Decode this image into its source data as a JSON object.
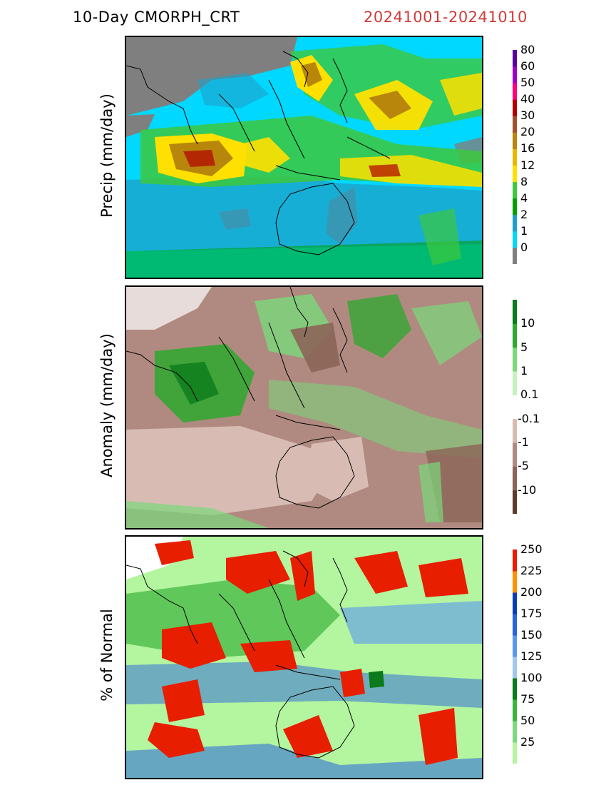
{
  "header": {
    "title": "10-Day CMORPH_CRT",
    "date_range": "20241001-20241010",
    "date_color": "#d23a3a"
  },
  "panels": [
    {
      "id": "precip",
      "ylabel": "Precip (mm/day)",
      "colorbar": {
        "colors": [
          "#7f7f7f",
          "#00d8ff",
          "#1fa0c8",
          "#00a000",
          "#3cc83c",
          "#ffe000",
          "#e6b800",
          "#b8860b",
          "#a0522d",
          "#b00000",
          "#ff0080",
          "#a000c8",
          "#5a00a0"
        ],
        "labels": [
          "0",
          "1",
          "2",
          "4",
          "8",
          "12",
          "16",
          "20",
          "30",
          "40",
          "50",
          "60",
          "80"
        ]
      }
    },
    {
      "id": "anomaly",
      "ylabel": "Anomaly (mm/day)",
      "colorbar": {
        "colors": [
          "#5e3a2e",
          "#8c6458",
          "#b08a80",
          "#d8bcb4",
          "#ffffff",
          "#c8f0c0",
          "#7ad97a",
          "#2ea82e",
          "#0a7a1a"
        ],
        "labels": [
          "-10",
          "-5",
          "-1",
          "-0.1",
          "0.1",
          "1",
          "5",
          "10"
        ]
      }
    },
    {
      "id": "percent",
      "ylabel": "% of Normal",
      "colorbar": {
        "colors": [
          "#b4f5a0",
          "#7ed87e",
          "#3cb43c",
          "#0a7a1a",
          "#a0c8f0",
          "#5a96f0",
          "#2864dc",
          "#0a3cb4",
          "#ff9000",
          "#e81e00"
        ],
        "labels": [
          "25",
          "50",
          "75",
          "100",
          "125",
          "150",
          "175",
          "200",
          "225",
          "250"
        ]
      }
    }
  ]
}
